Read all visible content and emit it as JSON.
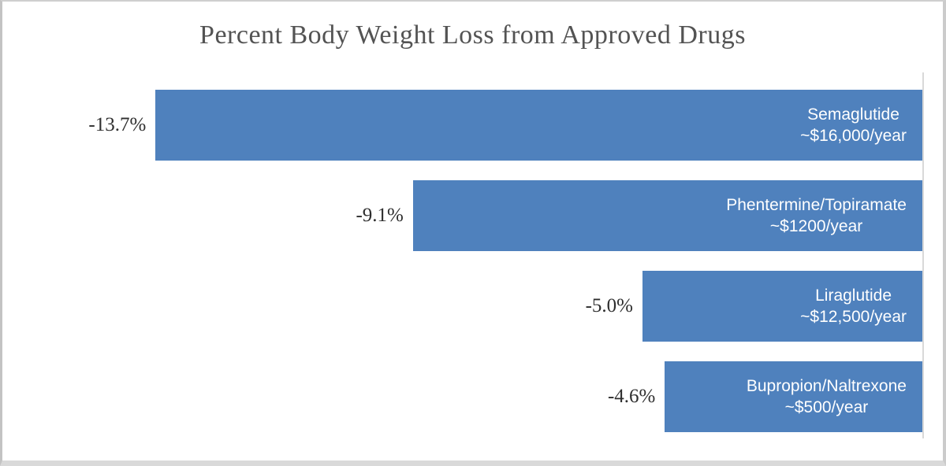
{
  "chart_data": {
    "type": "bar",
    "orientation": "horizontal",
    "title": "Percent Body Weight Loss from Approved Drugs",
    "categories": [
      "Semaglutide",
      "Phentermine/Topiramate",
      "Liraglutide",
      "Bupropion/Naltrexone"
    ],
    "values": [
      -13.7,
      -9.1,
      -5.0,
      -4.6
    ],
    "xlim": [
      -14,
      0
    ],
    "axis_side": "right",
    "grid": false,
    "legend": false,
    "bars": [
      {
        "drug": "Semaglutide",
        "cost": "~$16,000/year",
        "value": -13.7,
        "value_label": "-13.7%"
      },
      {
        "drug": "Phentermine/Topiramate",
        "cost": "~$1200/year",
        "value": -9.1,
        "value_label": "-9.1%"
      },
      {
        "drug": "Liraglutide",
        "cost": "~$12,500/year",
        "value": -5.0,
        "value_label": "-5.0%"
      },
      {
        "drug": "Bupropion/Naltrexone",
        "cost": "~$500/year",
        "value": -4.6,
        "value_label": "-4.6%"
      }
    ],
    "colors": {
      "bar": "#4F81BD",
      "bar_label_text": "#FFFFFF",
      "value_label_text": "#2E2E2E",
      "title_text": "#535353",
      "axis_line": "#D9D9D9",
      "background": "#FFFFFF"
    }
  }
}
